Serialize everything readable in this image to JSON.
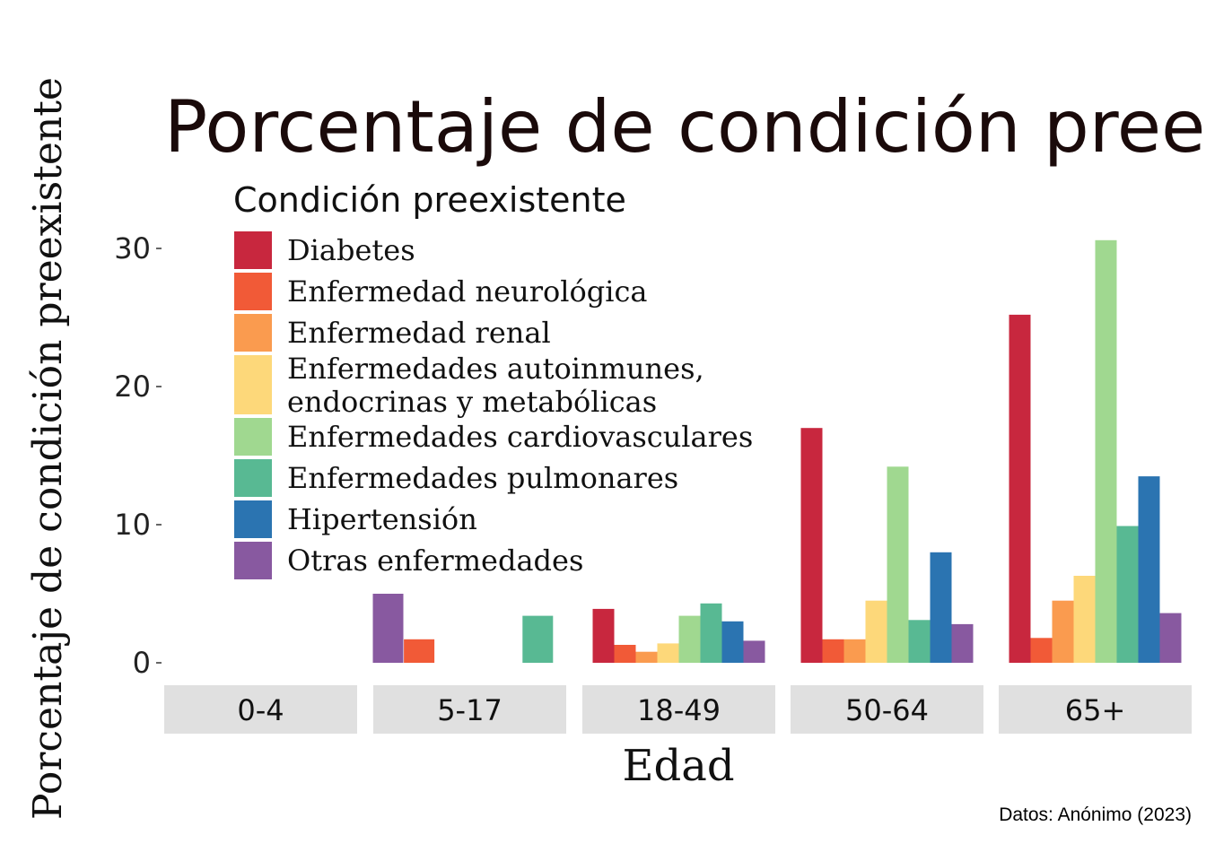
{
  "chart_data": {
    "type": "bar",
    "title": "Porcentaje de condición preexistente por edad",
    "xlabel": "Edad",
    "ylabel": "Porcentaje de condición preexistente",
    "caption": "Datos: Anónimo (2023)",
    "ylim": [
      0,
      31
    ],
    "yticks": [
      "0",
      "10",
      "20",
      "30"
    ],
    "ytick_values": [
      0,
      10,
      20,
      30
    ],
    "grid": false,
    "legend": {
      "title": "Condición preexistente",
      "placement": "top-left inside panel",
      "entries": [
        {
          "lines": [
            "Diabetes"
          ],
          "color": "#C8273E"
        },
        {
          "lines": [
            "Enfermedad neurológica"
          ],
          "color": "#F15A37"
        },
        {
          "lines": [
            "Enfermedad renal"
          ],
          "color": "#FA9B4F"
        },
        {
          "lines": [
            "Enfermedades autoinmunes,",
            "endocrinas y metabólicas"
          ],
          "color": "#FDD87A"
        },
        {
          "lines": [
            "Enfermedades cardiovasculares"
          ],
          "color": "#A0D890"
        },
        {
          "lines": [
            "Enfermedades pulmonares"
          ],
          "color": "#58B993"
        },
        {
          "lines": [
            "Hipertensión"
          ],
          "color": "#2B74B1"
        },
        {
          "lines": [
            "Otras enfermedades"
          ],
          "color": "#8859A0"
        }
      ]
    },
    "categories": [
      "0-4",
      "5-17",
      "18-49",
      "50-64",
      "65+"
    ],
    "panels": [
      {
        "label": "0-4",
        "bars": [
          {
            "series": "Otras enfermedades",
            "value": 5.0
          }
        ]
      },
      {
        "label": "5-17",
        "bars": [
          {
            "series": "Enfermedad neurológica",
            "value": 1.7
          },
          {
            "series": "Enfermedades pulmonares",
            "value": 3.4
          }
        ]
      },
      {
        "label": "18-49",
        "bars": [
          {
            "series": "Diabetes",
            "value": 3.9
          },
          {
            "series": "Enfermedad neurológica",
            "value": 1.3
          },
          {
            "series": "Enfermedad renal",
            "value": 0.8
          },
          {
            "series": "Enfermedades autoinmunes, endocrinas y metabólicas",
            "value": 1.4
          },
          {
            "series": "Enfermedades cardiovasculares",
            "value": 3.4
          },
          {
            "series": "Enfermedades pulmonares",
            "value": 4.3
          },
          {
            "series": "Hipertensión",
            "value": 3.0
          },
          {
            "series": "Otras enfermedades",
            "value": 1.6
          }
        ]
      },
      {
        "label": "50-64",
        "bars": [
          {
            "series": "Diabetes",
            "value": 17.0
          },
          {
            "series": "Enfermedad neurológica",
            "value": 1.7
          },
          {
            "series": "Enfermedad renal",
            "value": 1.7
          },
          {
            "series": "Enfermedades autoinmunes, endocrinas y metabólicas",
            "value": 4.5
          },
          {
            "series": "Enfermedades cardiovasculares",
            "value": 14.2
          },
          {
            "series": "Enfermedades pulmonares",
            "value": 3.1
          },
          {
            "series": "Hipertensión",
            "value": 8.0
          },
          {
            "series": "Otras enfermedades",
            "value": 2.8
          }
        ]
      },
      {
        "label": "65+",
        "bars": [
          {
            "series": "Diabetes",
            "value": 25.2
          },
          {
            "series": "Enfermedad neurológica",
            "value": 1.8
          },
          {
            "series": "Enfermedad renal",
            "value": 4.5
          },
          {
            "series": "Enfermedades autoinmunes, endocrinas y metabólicas",
            "value": 6.3
          },
          {
            "series": "Enfermedades cardiovasculares",
            "value": 30.6
          },
          {
            "series": "Enfermedades pulmonares",
            "value": 9.9
          },
          {
            "series": "Hipertensión",
            "value": 13.5
          },
          {
            "series": "Otras enfermedades",
            "value": 3.6
          }
        ]
      }
    ]
  }
}
